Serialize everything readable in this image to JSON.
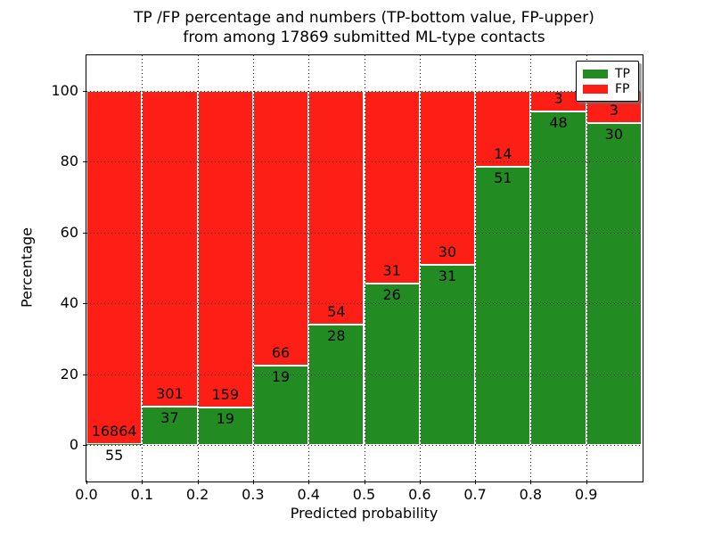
{
  "chart_data": {
    "type": "bar",
    "stacked": true,
    "normalized_to": 100,
    "title_lines": [
      "TP /FP percentage and numbers (TP-bottom value, FP-upper)",
      "from among 17869 submitted ML-type contacts"
    ],
    "xlabel": "Predicted probability",
    "ylabel": "Percentage",
    "xlim": [
      0.0,
      1.0
    ],
    "ylim": [
      -10,
      110
    ],
    "xticks": [
      0.0,
      0.1,
      0.2,
      0.3,
      0.4,
      0.5,
      0.6,
      0.7,
      0.8,
      0.9
    ],
    "xtick_labels": [
      "0.0",
      "0.1",
      "0.2",
      "0.3",
      "0.4",
      "0.5",
      "0.6",
      "0.7",
      "0.8",
      "0.9"
    ],
    "yticks": [
      0,
      20,
      40,
      60,
      80,
      100
    ],
    "ytick_labels": [
      "0",
      "20",
      "40",
      "60",
      "80",
      "100"
    ],
    "grid": "dotted",
    "legend": {
      "position": "upper-right",
      "entries": [
        {
          "label": "TP",
          "color": "#228b22"
        },
        {
          "label": "FP",
          "color": "#fd1f16"
        }
      ]
    },
    "total_contacts": 17869,
    "bins": [
      {
        "x0": 0.0,
        "x1": 0.1,
        "tp": 55,
        "fp": 16864
      },
      {
        "x0": 0.1,
        "x1": 0.2,
        "tp": 37,
        "fp": 301
      },
      {
        "x0": 0.2,
        "x1": 0.3,
        "tp": 19,
        "fp": 159
      },
      {
        "x0": 0.3,
        "x1": 0.4,
        "tp": 19,
        "fp": 66
      },
      {
        "x0": 0.4,
        "x1": 0.5,
        "tp": 28,
        "fp": 54
      },
      {
        "x0": 0.5,
        "x1": 0.6,
        "tp": 26,
        "fp": 31
      },
      {
        "x0": 0.6,
        "x1": 0.7,
        "tp": 31,
        "fp": 30
      },
      {
        "x0": 0.7,
        "x1": 0.8,
        "tp": 51,
        "fp": 14
      },
      {
        "x0": 0.8,
        "x1": 0.9,
        "tp": 48,
        "fp": 3
      },
      {
        "x0": 0.9,
        "x1": 1.0,
        "tp": 30,
        "fp": 3
      }
    ]
  },
  "colors": {
    "tp": "#228b22",
    "fp": "#fd1f16",
    "grid": "#000000",
    "frame": "#000000",
    "background": "#ffffff"
  }
}
